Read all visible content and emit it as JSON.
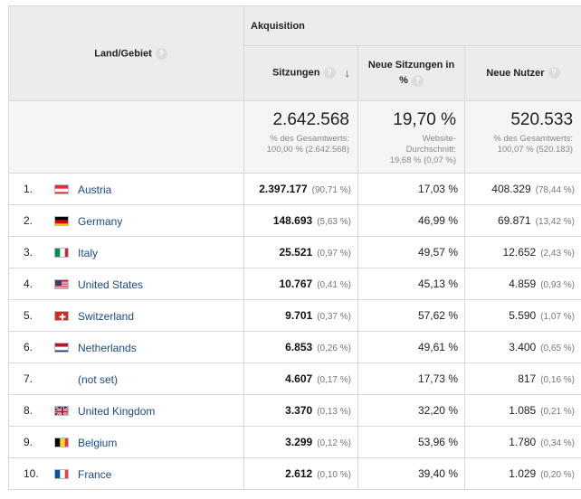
{
  "header": {
    "dimension_label": "Land/Gebiet",
    "group_label": "Akquisition",
    "columns": [
      {
        "label": "Sitzungen"
      },
      {
        "label": "Neue Sitzungen in %"
      },
      {
        "label": "Neue Nutzer"
      }
    ],
    "help_glyph": "?",
    "sort_arrow": "↓"
  },
  "totals": {
    "sessions": {
      "value": "2.642.568",
      "sub1": "% des Gesamtwerts:",
      "sub2": "100,00 % (2.642.568)"
    },
    "new_sessions": {
      "value": "19,70 %",
      "sub1": "Website-",
      "sub2": "Durchschnitt:",
      "sub3": "19,68 % (0,07 %)"
    },
    "new_users": {
      "value": "520.533",
      "sub1": "% des Gesamtwerts:",
      "sub2": "100,07 % (520.183)"
    }
  },
  "rows": [
    {
      "rank": "1.",
      "country": "Austria",
      "flag": "austria-flag-icon",
      "sessions": "2.397.177",
      "sessions_pct": "(90,71 %)",
      "new_sessions": "17,03 %",
      "new_users": "408.329",
      "new_users_pct": "(78,44 %)"
    },
    {
      "rank": "2.",
      "country": "Germany",
      "flag": "germany-flag-icon",
      "sessions": "148.693",
      "sessions_pct": "(5,63 %)",
      "new_sessions": "46,99 %",
      "new_users": "69.871",
      "new_users_pct": "(13,42 %)"
    },
    {
      "rank": "3.",
      "country": "Italy",
      "flag": "italy-flag-icon",
      "sessions": "25.521",
      "sessions_pct": "(0,97 %)",
      "new_sessions": "49,57 %",
      "new_users": "12.652",
      "new_users_pct": "(2,43 %)"
    },
    {
      "rank": "4.",
      "country": "United States",
      "flag": "usa-flag-icon",
      "sessions": "10.767",
      "sessions_pct": "(0,41 %)",
      "new_sessions": "45,13 %",
      "new_users": "4.859",
      "new_users_pct": "(0,93 %)"
    },
    {
      "rank": "5.",
      "country": "Switzerland",
      "flag": "switzerland-flag-icon",
      "sessions": "9.701",
      "sessions_pct": "(0,37 %)",
      "new_sessions": "57,62 %",
      "new_users": "5.590",
      "new_users_pct": "(1,07 %)"
    },
    {
      "rank": "6.",
      "country": "Netherlands",
      "flag": "netherlands-flag-icon",
      "sessions": "6.853",
      "sessions_pct": "(0,26 %)",
      "new_sessions": "49,61 %",
      "new_users": "3.400",
      "new_users_pct": "(0,65 %)"
    },
    {
      "rank": "7.",
      "country": "(not set)",
      "flag": "",
      "sessions": "4.607",
      "sessions_pct": "(0,17 %)",
      "new_sessions": "17,73 %",
      "new_users": "817",
      "new_users_pct": "(0,16 %)"
    },
    {
      "rank": "8.",
      "country": "United Kingdom",
      "flag": "uk-flag-icon",
      "sessions": "3.370",
      "sessions_pct": "(0,13 %)",
      "new_sessions": "32,20 %",
      "new_users": "1.085",
      "new_users_pct": "(0,21 %)"
    },
    {
      "rank": "9.",
      "country": "Belgium",
      "flag": "belgium-flag-icon",
      "sessions": "3.299",
      "sessions_pct": "(0,12 %)",
      "new_sessions": "53,96 %",
      "new_users": "1.780",
      "new_users_pct": "(0,34 %)"
    },
    {
      "rank": "10.",
      "country": "France",
      "flag": "france-flag-icon",
      "sessions": "2.612",
      "sessions_pct": "(0,10 %)",
      "new_sessions": "39,40 %",
      "new_users": "1.029",
      "new_users_pct": "(0,20 %)"
    }
  ]
}
